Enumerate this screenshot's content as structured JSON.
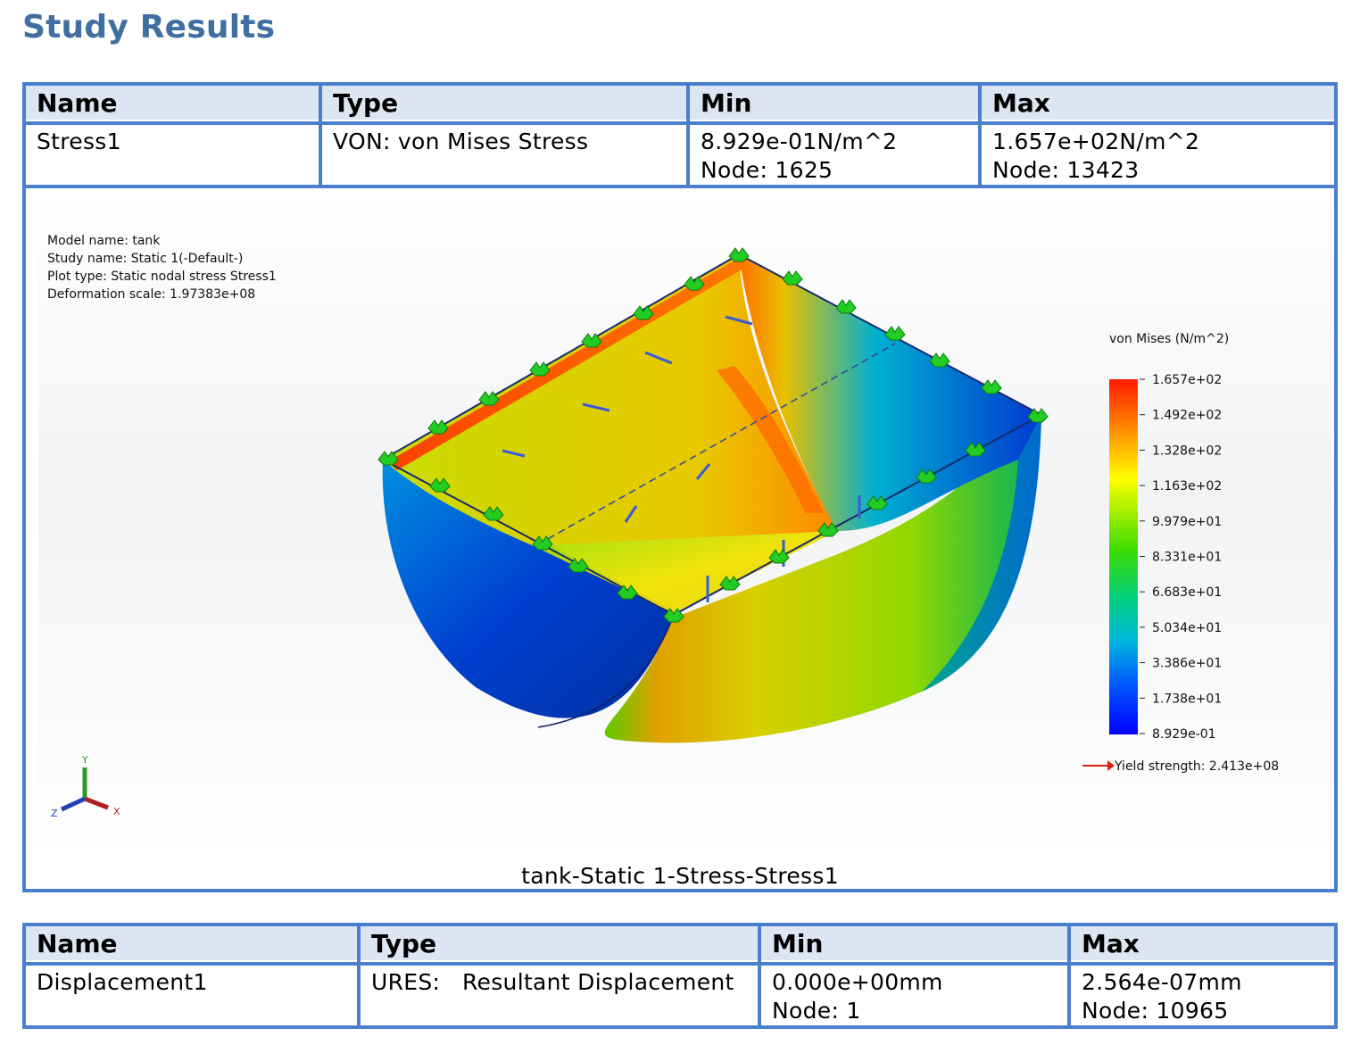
{
  "page_title": "Study Results",
  "stress_table": {
    "headers": [
      "Name",
      "Type",
      "Min",
      "Max"
    ],
    "row": {
      "name": "Stress1",
      "type": "VON: von Mises Stress",
      "min_value": "8.929e-01N/m^2",
      "min_node": "Node: 1625",
      "max_value": "1.657e+02N/m^2",
      "max_node": "Node: 13423"
    },
    "plot": {
      "info": [
        "Model name: tank",
        "Study name: Static 1(-Default-)",
        "Plot type: Static nodal stress Stress1",
        "Deformation scale: 1.97383e+08"
      ],
      "legend_title": "von Mises (N/m^2)",
      "legend_ticks": [
        "1.657e+02",
        "1.492e+02",
        "1.328e+02",
        "1.163e+02",
        "9.979e+01",
        "8.331e+01",
        "6.683e+01",
        "5.034e+01",
        "3.386e+01",
        "1.738e+01",
        "8.929e-01"
      ],
      "yield_strength": "Yield strength: 2.413e+08",
      "axes": [
        "Y",
        "X",
        "Z"
      ],
      "colors": {
        "scale": [
          "#ff1a00",
          "#ff8c00",
          "#ffff00",
          "#3cdc00",
          "#00c8c8",
          "#0050ff",
          "#0000ff"
        ],
        "restraint": "#22cc22",
        "load_arrow": "#3a5bd6",
        "yield_arrow": "#e02010"
      },
      "caption": "tank-Static 1-Stress-Stress1"
    }
  },
  "displacement_table": {
    "headers": [
      "Name",
      "Type",
      "Min",
      "Max"
    ],
    "row": {
      "name": "Displacement1",
      "type": "URES:   Resultant Displacement",
      "min_value": "0.000e+00mm",
      "min_node": "Node: 1",
      "max_value": "2.564e-07mm",
      "max_node": "Node: 10965"
    }
  }
}
